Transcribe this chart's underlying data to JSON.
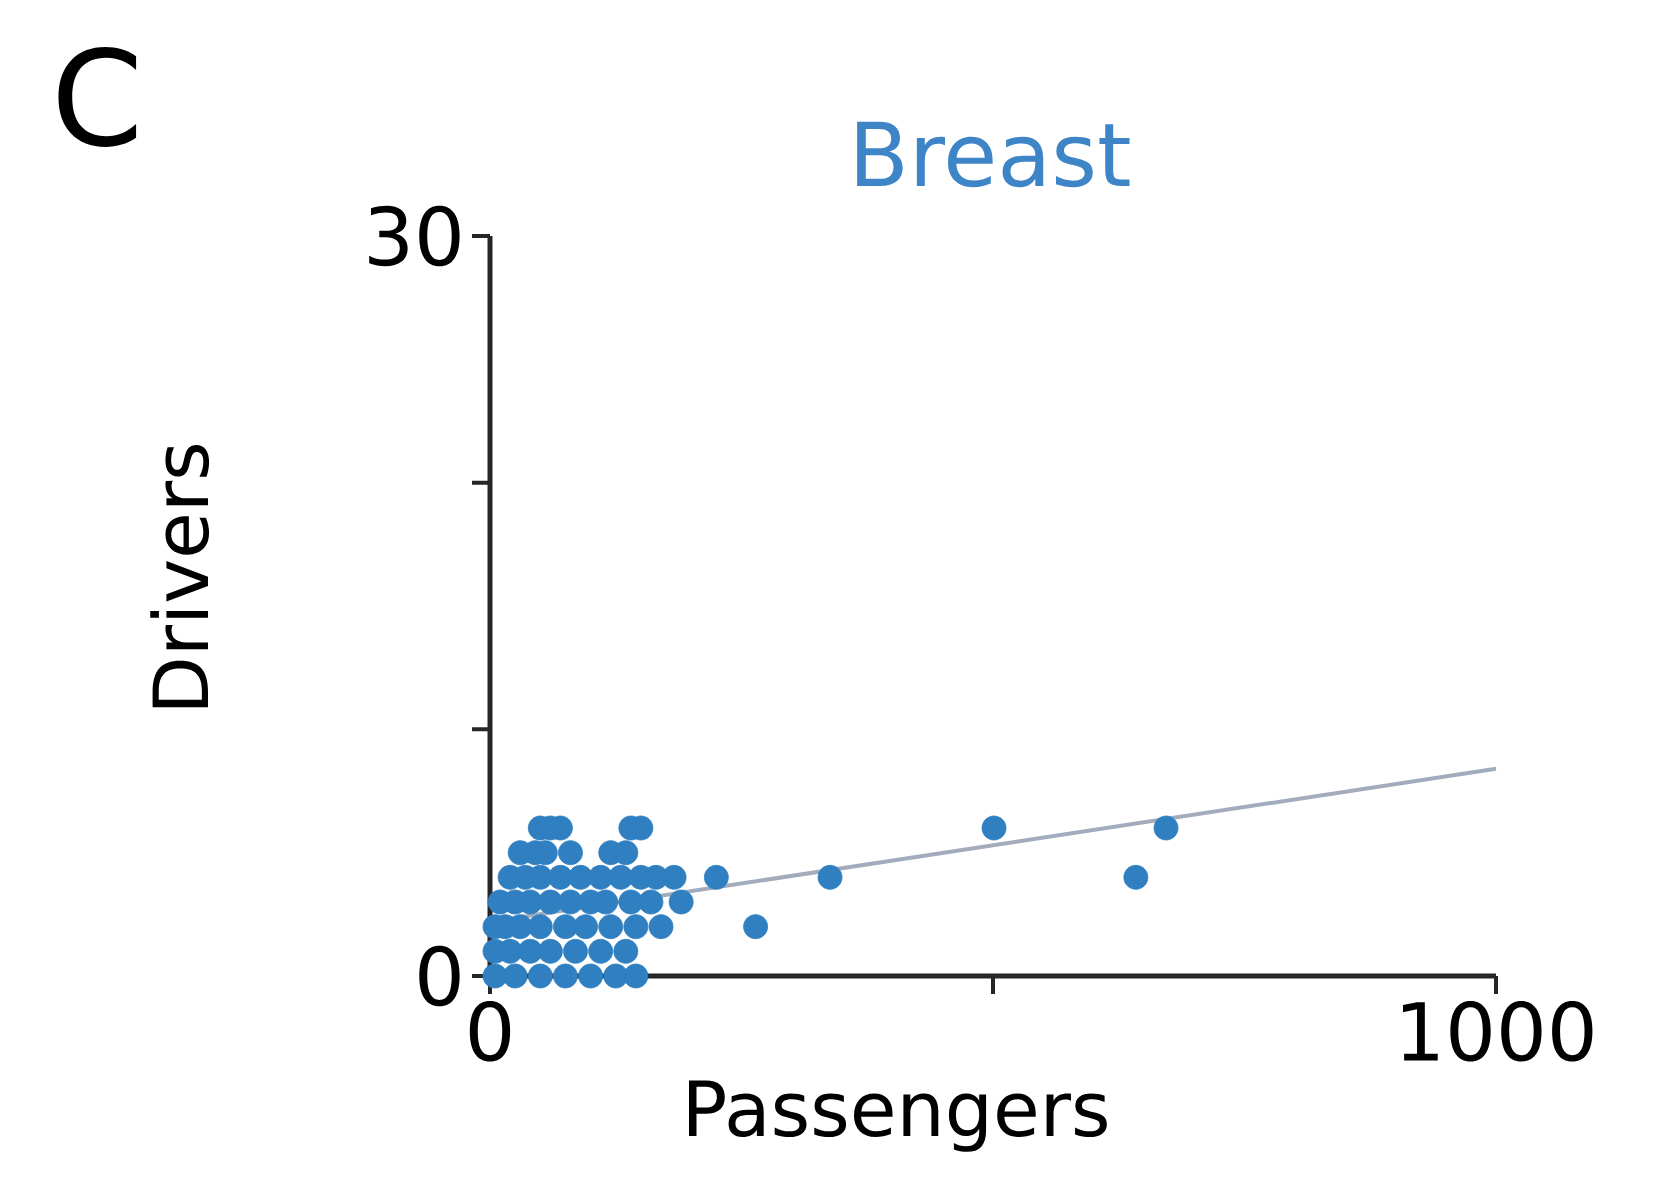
{
  "chart_data": {
    "type": "scatter",
    "title": "Breast",
    "xlabel": "Passengers",
    "ylabel": "Drivers",
    "annotations": [
      "C"
    ],
    "xlim": [
      0,
      1000
    ],
    "ylim": [
      0,
      30
    ],
    "xticks": [
      0,
      {
        "value": 500,
        "label": null
      },
      1000
    ],
    "yticks": [
      0,
      {
        "value": 10,
        "label": null
      },
      {
        "value": 20,
        "label": null
      },
      30
    ],
    "grid": false,
    "series": [
      {
        "marker": "circle",
        "color": "#2f7fc1",
        "x": [
          50,
          60,
          70,
          140,
          150,
          30,
          45,
          55,
          80,
          120,
          135,
          20,
          35,
          50,
          70,
          90,
          110,
          130,
          150,
          165,
          183,
          225,
          338,
          10,
          25,
          40,
          60,
          80,
          100,
          115,
          140,
          160,
          190,
          5,
          15,
          30,
          50,
          75,
          95,
          120,
          145,
          170,
          264,
          5,
          20,
          40,
          60,
          85,
          110,
          135,
          5,
          25,
          50,
          75,
          100,
          125,
          145,
          501,
          672,
          642
        ],
        "values": [
          6,
          6,
          6,
          6,
          6,
          5,
          5,
          5,
          5,
          5,
          5,
          4,
          4,
          4,
          4,
          4,
          4,
          4,
          4,
          4,
          4,
          4,
          4,
          3,
          3,
          3,
          3,
          3,
          3,
          3,
          3,
          3,
          3,
          2,
          2,
          2,
          2,
          2,
          2,
          2,
          2,
          2,
          2,
          1,
          1,
          1,
          1,
          1,
          1,
          1,
          0,
          0,
          0,
          0,
          0,
          0,
          0,
          6,
          6,
          4
        ]
      },
      {
        "type": "line",
        "marker": "none",
        "color": "#a3acbd",
        "x": [
          0,
          1000
        ],
        "values": [
          2.2,
          8.4
        ]
      }
    ]
  }
}
